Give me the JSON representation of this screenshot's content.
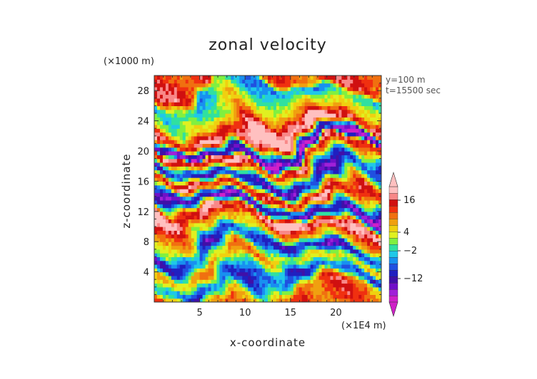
{
  "chart_data": {
    "type": "heatmap",
    "title": "zonal velocity",
    "xlabel": "x-coordinate",
    "ylabel": "z-coordinate",
    "x_unit": "(×1E4 m)",
    "y_unit": "(×1000 m)",
    "annotations": [
      "y=100 m",
      "t=15500 sec"
    ],
    "xlim": [
      0,
      25
    ],
    "ylim": [
      0,
      30
    ],
    "x_ticks": [
      5,
      10,
      15,
      20
    ],
    "y_ticks": [
      4,
      8,
      12,
      16,
      20,
      24,
      28
    ],
    "colorbar": {
      "tick_labels": [
        "16",
        "4",
        "−2",
        "−12"
      ],
      "colors": [
        "#d020c8",
        "#a020d8",
        "#7010c8",
        "#4010a8",
        "#2020c0",
        "#2050e0",
        "#1890f0",
        "#20c8e8",
        "#30e0a0",
        "#80f040",
        "#e0f020",
        "#f0d010",
        "#f0a010",
        "#f07010",
        "#f03010",
        "#d01010",
        "#f88888",
        "#ffc0c0"
      ]
    },
    "bands": [
      {
        "z": 29.0,
        "value": 12
      },
      {
        "z": 27.5,
        "value": -4
      },
      {
        "z": 25.0,
        "value": 4
      },
      {
        "z": 22.5,
        "value": 18
      },
      {
        "z": 20.5,
        "value": -16
      },
      {
        "z": 19.5,
        "value": 16
      },
      {
        "z": 17.0,
        "value": -12
      },
      {
        "z": 15.0,
        "value": 14
      },
      {
        "z": 13.0,
        "value": -14
      },
      {
        "z": 11.0,
        "value": 18
      },
      {
        "z": 9.0,
        "value": 8
      },
      {
        "z": 7.0,
        "value": -10
      },
      {
        "z": 5.0,
        "value": 6
      },
      {
        "z": 3.0,
        "value": -8
      },
      {
        "z": 1.0,
        "value": 10
      }
    ]
  }
}
